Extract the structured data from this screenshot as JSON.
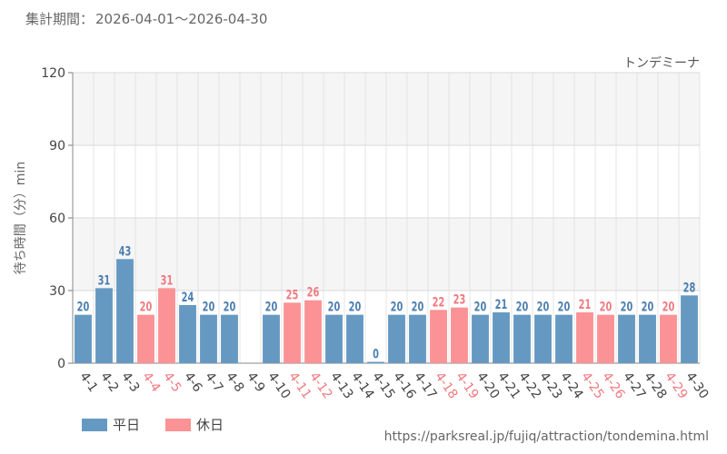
{
  "period": {
    "label": "集計期間：",
    "range": "2026-04-01～2026-04-30"
  },
  "attraction_name": "トンデミーナ",
  "source_url": "https://parksreal.jp/fujiq/attraction/tondemina.html",
  "legend": {
    "weekday": "平日",
    "holiday": "休日"
  },
  "colors": {
    "weekday": "#6699c2",
    "holiday": "#fb9295",
    "weekday_text": "#4d7fb0",
    "holiday_text": "#f07a80",
    "grid": "#e4e4e4",
    "band": "#f5f5f5"
  },
  "chart_data": {
    "type": "bar",
    "ylabel": "待ち時間（分）min",
    "ylim": [
      0,
      120
    ],
    "yticks": [
      0,
      30,
      60,
      90,
      120
    ],
    "categories": [
      "4-1",
      "4-2",
      "4-3",
      "4-4",
      "4-5",
      "4-6",
      "4-7",
      "4-8",
      "4-9",
      "4-10",
      "4-11",
      "4-12",
      "4-13",
      "4-14",
      "4-15",
      "4-16",
      "4-17",
      "4-18",
      "4-19",
      "4-20",
      "4-21",
      "4-22",
      "4-23",
      "4-24",
      "4-25",
      "4-26",
      "4-27",
      "4-28",
      "4-29",
      "4-30"
    ],
    "values": [
      20,
      31,
      43,
      20,
      31,
      24,
      20,
      20,
      null,
      20,
      25,
      26,
      20,
      20,
      0,
      20,
      20,
      22,
      23,
      20,
      21,
      20,
      20,
      20,
      21,
      20,
      20,
      20,
      20,
      28
    ],
    "day_type": [
      "weekday",
      "weekday",
      "weekday",
      "holiday",
      "holiday",
      "weekday",
      "weekday",
      "weekday",
      "weekday",
      "weekday",
      "holiday",
      "holiday",
      "weekday",
      "weekday",
      "weekday",
      "weekday",
      "weekday",
      "holiday",
      "holiday",
      "weekday",
      "weekday",
      "weekday",
      "weekday",
      "weekday",
      "holiday",
      "holiday",
      "weekday",
      "weekday",
      "holiday",
      "weekday"
    ],
    "series": [
      {
        "name": "平日"
      },
      {
        "name": "休日"
      }
    ],
    "grid": true,
    "legend_position": "bottom-left"
  }
}
